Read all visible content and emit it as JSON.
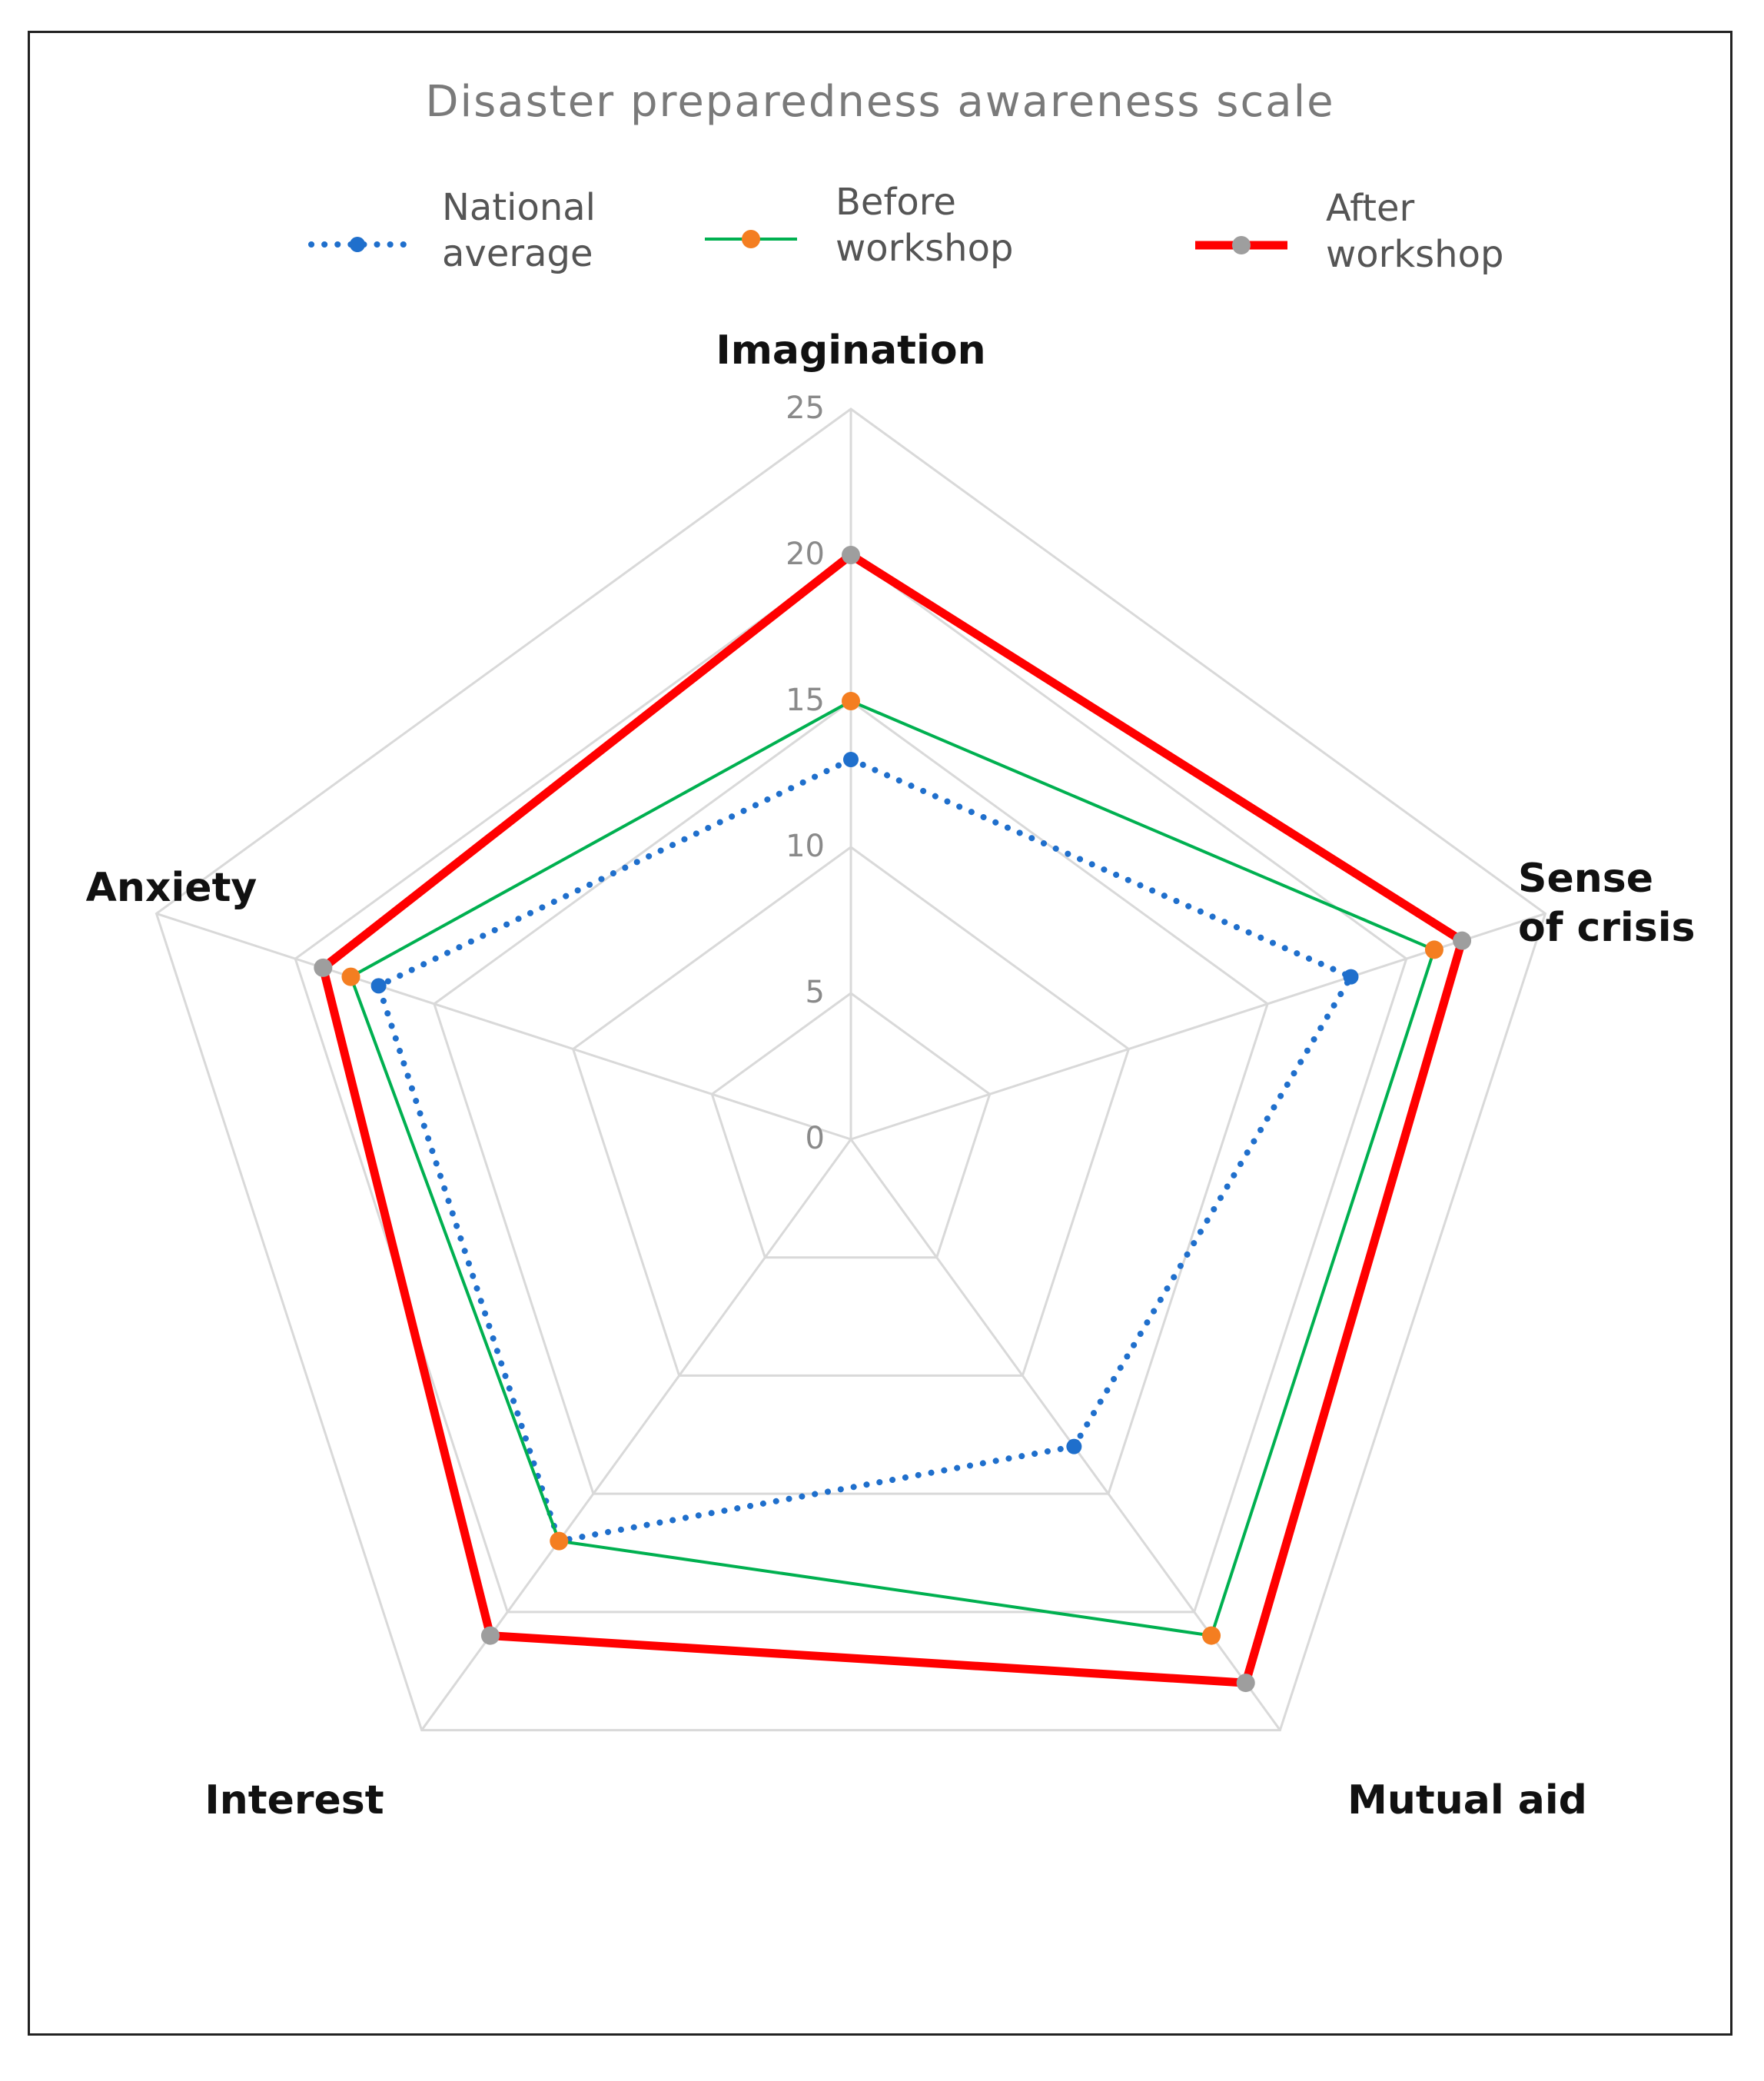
{
  "chart_data": {
    "type": "radar",
    "title": "Disaster preparedness awareness scale",
    "categories": [
      [
        "Imagination"
      ],
      [
        "Sense",
        "of crisis"
      ],
      [
        "Mutual aid"
      ],
      [
        "Interest"
      ],
      [
        "Anxiety"
      ]
    ],
    "rmin": 0,
    "rmax": 25,
    "ticks": [
      "0",
      "5",
      "10",
      "15",
      "20",
      "25"
    ],
    "tick_values": [
      0,
      5,
      10,
      15,
      20,
      25
    ],
    "grid": true,
    "legend_position": "top",
    "series": [
      {
        "name": [
          "National",
          "average"
        ],
        "values": [
          13,
          18,
          13,
          17,
          17
        ],
        "line_color": "#1f6fcc",
        "marker_color": "#1f6fcc",
        "style": "dotted"
      },
      {
        "name": [
          "Before",
          "workshop"
        ],
        "values": [
          15,
          21,
          21,
          17,
          18
        ],
        "line_color": "#00b050",
        "marker_color": "#f47e21",
        "style": "solid"
      },
      {
        "name": [
          "After",
          "workshop"
        ],
        "values": [
          20,
          22,
          23,
          21,
          19
        ],
        "line_color": "#ff0000",
        "marker_color": "#9e9e9e",
        "style": "thick"
      }
    ]
  }
}
